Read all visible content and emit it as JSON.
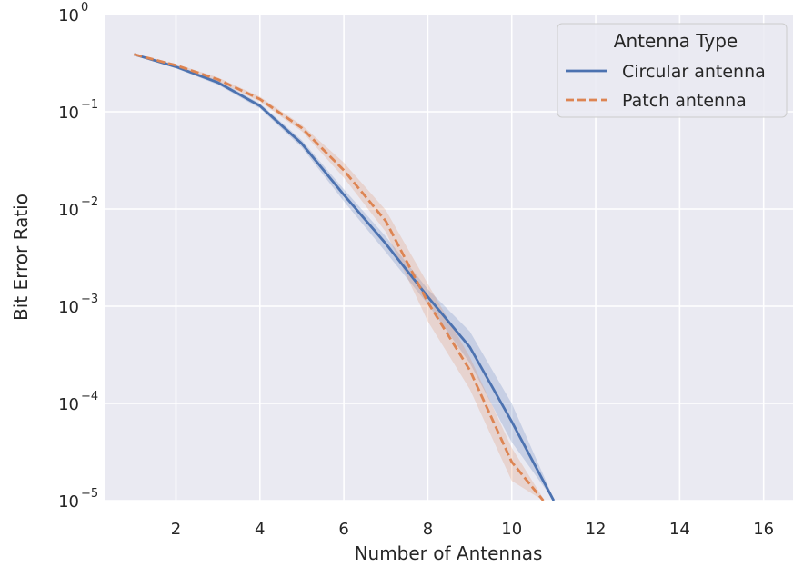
{
  "chart_data": {
    "type": "line",
    "xlabel": "Number of Antennas",
    "ylabel": "Bit Error Ratio",
    "xlim": [
      0.3,
      16.7
    ],
    "ylim": [
      1e-05,
      1
    ],
    "yscale": "log",
    "xticks": [
      2,
      4,
      6,
      8,
      10,
      12,
      14,
      16
    ],
    "yticks": [
      {
        "value": 1,
        "base": "10",
        "exp": "0"
      },
      {
        "value": 0.1,
        "base": "10",
        "exp": "−1"
      },
      {
        "value": 0.01,
        "base": "10",
        "exp": "−2"
      },
      {
        "value": 0.001,
        "base": "10",
        "exp": "−3"
      },
      {
        "value": 0.0001,
        "base": "10",
        "exp": "−4"
      },
      {
        "value": 1e-05,
        "base": "10",
        "exp": "−5"
      }
    ],
    "grid": true,
    "legend": {
      "title": "Antenna Type",
      "position": "top-right"
    },
    "series": [
      {
        "name": "Circular antenna",
        "color": "#4c72b0",
        "dash": "solid",
        "x": [
          1,
          2,
          3,
          4,
          5,
          6,
          7,
          8,
          9,
          10,
          11
        ],
        "y": [
          0.39,
          0.29,
          0.2,
          0.115,
          0.047,
          0.014,
          0.0044,
          0.00125,
          0.00038,
          6.5e-05,
          1e-05
        ],
        "band_low": [
          0.385,
          0.28,
          0.19,
          0.108,
          0.043,
          0.012,
          0.0036,
          0.00105,
          0.00026,
          4e-05,
          1e-05
        ],
        "band_high": [
          0.395,
          0.3,
          0.21,
          0.122,
          0.051,
          0.016,
          0.0052,
          0.0015,
          0.00055,
          0.0001,
          1.05e-05
        ]
      },
      {
        "name": "Patch antenna",
        "color": "#dd8452",
        "dash": "dashed",
        "x": [
          1,
          2,
          3,
          4,
          5,
          6,
          7,
          8,
          9,
          10,
          10.75
        ],
        "y": [
          0.39,
          0.3,
          0.215,
          0.135,
          0.068,
          0.025,
          0.0075,
          0.0011,
          0.00022,
          2.5e-05,
          1e-05
        ],
        "band_low": [
          0.385,
          0.29,
          0.205,
          0.127,
          0.063,
          0.021,
          0.0058,
          0.0007,
          0.00014,
          1.6e-05,
          1e-05
        ],
        "band_high": [
          0.395,
          0.31,
          0.225,
          0.143,
          0.073,
          0.03,
          0.0097,
          0.0017,
          0.0003,
          3.5e-05,
          1.05e-05
        ]
      }
    ]
  }
}
